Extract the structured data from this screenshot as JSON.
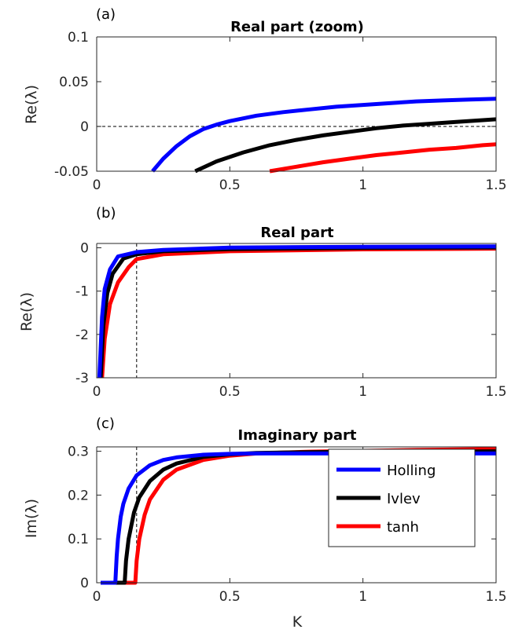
{
  "figure": {
    "xlabel": "K",
    "series_names": [
      "Holling",
      "Ivlev",
      "tanh"
    ],
    "colors": {
      "Holling": "#0000ff",
      "Ivlev": "#000000",
      "tanh": "#ff0000"
    }
  },
  "chart_data": [
    {
      "type": "line",
      "panel_label": "(a)",
      "title": "Real part (zoom)",
      "xlabel": "",
      "ylabel": "Re(λ)",
      "xlim": [
        0,
        1.5
      ],
      "ylim": [
        -0.05,
        0.1
      ],
      "xticks": [
        0,
        0.5,
        1,
        1.5
      ],
      "xtick_labels": [
        "0",
        "0.5",
        "1",
        "1.5"
      ],
      "yticks": [
        0.1,
        0.05,
        0,
        -0.05
      ],
      "ytick_labels": [
        "0.1",
        "0.05",
        "0",
        "-0.05"
      ],
      "hline": 0,
      "series": [
        {
          "name": "Holling",
          "x": [
            0.21,
            0.25,
            0.3,
            0.35,
            0.4,
            0.45,
            0.5,
            0.6,
            0.7,
            0.8,
            0.9,
            1.0,
            1.1,
            1.2,
            1.3,
            1.4,
            1.5
          ],
          "y": [
            -0.05,
            -0.036,
            -0.022,
            -0.011,
            -0.003,
            0.002,
            0.006,
            0.012,
            0.016,
            0.019,
            0.022,
            0.024,
            0.026,
            0.028,
            0.029,
            0.03,
            0.031
          ]
        },
        {
          "name": "Ivlev",
          "x": [
            0.37,
            0.45,
            0.55,
            0.65,
            0.75,
            0.85,
            0.95,
            1.05,
            1.15,
            1.25,
            1.35,
            1.45,
            1.5
          ],
          "y": [
            -0.05,
            -0.039,
            -0.029,
            -0.021,
            -0.015,
            -0.01,
            -0.006,
            -0.002,
            0.001,
            0.003,
            0.005,
            0.007,
            0.008
          ]
        },
        {
          "name": "tanh",
          "x": [
            0.65,
            0.75,
            0.85,
            0.95,
            1.05,
            1.15,
            1.25,
            1.35,
            1.45,
            1.5
          ],
          "y": [
            -0.05,
            -0.045,
            -0.04,
            -0.036,
            -0.032,
            -0.029,
            -0.026,
            -0.024,
            -0.021,
            -0.02
          ]
        }
      ]
    },
    {
      "type": "line",
      "panel_label": "(b)",
      "title": "Real part",
      "xlabel": "",
      "ylabel": "Re(λ)",
      "xlim": [
        0,
        1.5
      ],
      "ylim": [
        -3,
        0.1
      ],
      "xticks": [
        0,
        0.5,
        1,
        1.5
      ],
      "xtick_labels": [
        "0",
        "0.5",
        "1",
        "1.5"
      ],
      "yticks": [
        0,
        -1,
        -2,
        -3
      ],
      "ytick_labels": [
        "0",
        "-1",
        "-2",
        "-3"
      ],
      "vline": 0.15,
      "series": [
        {
          "name": "Holling",
          "x": [
            0.01,
            0.02,
            0.03,
            0.05,
            0.08,
            0.15,
            0.25,
            0.5,
            1.0,
            1.5
          ],
          "y": [
            -3.0,
            -1.6,
            -0.95,
            -0.5,
            -0.2,
            -0.1,
            -0.05,
            0.006,
            0.024,
            0.031
          ]
        },
        {
          "name": "Ivlev",
          "x": [
            0.015,
            0.025,
            0.04,
            0.06,
            0.1,
            0.15,
            0.25,
            0.5,
            1.0,
            1.5
          ],
          "y": [
            -3.0,
            -1.8,
            -1.05,
            -0.6,
            -0.25,
            -0.15,
            -0.08,
            -0.03,
            -0.004,
            0.008
          ]
        },
        {
          "name": "tanh",
          "x": [
            0.02,
            0.03,
            0.05,
            0.08,
            0.12,
            0.15,
            0.25,
            0.5,
            1.0,
            1.5
          ],
          "y": [
            -3.0,
            -2.1,
            -1.3,
            -0.8,
            -0.45,
            -0.26,
            -0.15,
            -0.08,
            -0.036,
            -0.02
          ]
        }
      ]
    },
    {
      "type": "line",
      "panel_label": "(c)",
      "title": "Imaginary part",
      "xlabel": "K",
      "ylabel": "Im(λ)",
      "xlim": [
        0,
        1.5
      ],
      "ylim": [
        0,
        0.31
      ],
      "xticks": [
        0,
        0.5,
        1,
        1.5
      ],
      "xtick_labels": [
        "0",
        "0.5",
        "1",
        "1.5"
      ],
      "yticks": [
        0.3,
        0.2,
        0.1,
        0
      ],
      "ytick_labels": [
        "0.3",
        "0.2",
        "0.1",
        "0"
      ],
      "vline": 0.15,
      "legend": {
        "entries": [
          "Holling",
          "Ivlev",
          "tanh"
        ],
        "position": "right-middle"
      },
      "series": [
        {
          "name": "Holling",
          "x": [
            0.015,
            0.07,
            0.075,
            0.08,
            0.09,
            0.1,
            0.12,
            0.15,
            0.2,
            0.25,
            0.3,
            0.4,
            0.5,
            0.6,
            0.8,
            1.0,
            1.2,
            1.5
          ],
          "y": [
            0,
            0,
            0.06,
            0.1,
            0.15,
            0.18,
            0.215,
            0.245,
            0.268,
            0.28,
            0.286,
            0.292,
            0.294,
            0.295,
            0.295,
            0.295,
            0.295,
            0.295
          ]
        },
        {
          "name": "Ivlev",
          "x": [
            0.015,
            0.105,
            0.11,
            0.12,
            0.14,
            0.16,
            0.2,
            0.25,
            0.3,
            0.4,
            0.5,
            0.6,
            0.8,
            1.0,
            1.2,
            1.5
          ],
          "y": [
            0,
            0,
            0.05,
            0.1,
            0.16,
            0.195,
            0.232,
            0.258,
            0.272,
            0.287,
            0.293,
            0.296,
            0.298,
            0.299,
            0.299,
            0.3
          ]
        },
        {
          "name": "tanh",
          "x": [
            0.015,
            0.145,
            0.15,
            0.16,
            0.18,
            0.2,
            0.25,
            0.3,
            0.4,
            0.5,
            0.6,
            0.8,
            1.0,
            1.2,
            1.5
          ],
          "y": [
            0,
            0,
            0.05,
            0.1,
            0.155,
            0.19,
            0.235,
            0.258,
            0.28,
            0.29,
            0.295,
            0.299,
            0.301,
            0.303,
            0.305
          ]
        }
      ]
    }
  ]
}
